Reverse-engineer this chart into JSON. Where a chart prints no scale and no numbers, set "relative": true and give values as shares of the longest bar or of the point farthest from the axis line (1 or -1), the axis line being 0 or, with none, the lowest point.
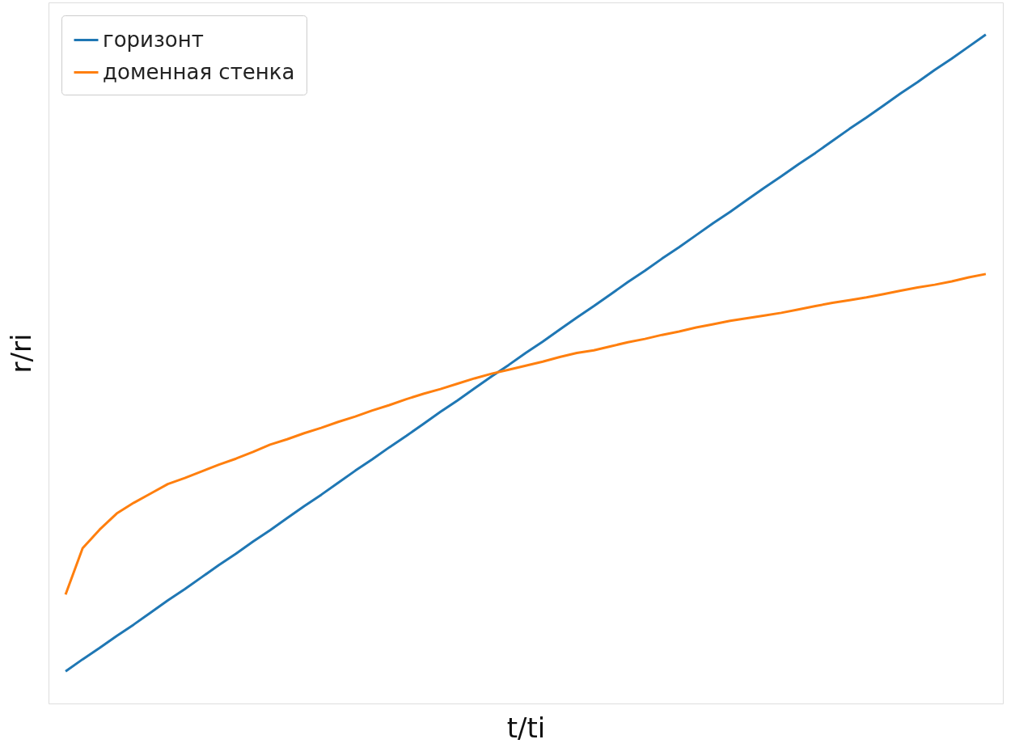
{
  "chart_data": {
    "type": "line",
    "xlabel": "t/ti",
    "ylabel": "r/ri",
    "relative": true,
    "grid": false,
    "legend": "top left",
    "marker": "none",
    "line_style": "solid",
    "categories": [
      null,
      null,
      null,
      null,
      null,
      null,
      null,
      null,
      null,
      null,
      null,
      null,
      null,
      null,
      null,
      null,
      null,
      null,
      null,
      null,
      null,
      null,
      null,
      null,
      null,
      null,
      null,
      null,
      null,
      null,
      null,
      null,
      null,
      null,
      null,
      null,
      null,
      null,
      null,
      null,
      null,
      null,
      null,
      null,
      null,
      null,
      null,
      null,
      null,
      null,
      null,
      null,
      null,
      null,
      null
    ],
    "series": [
      {
        "name": "горизонт",
        "color": "#1f77b4",
        "values": [
          0.048,
          0.066,
          0.083,
          0.101,
          0.118,
          0.136,
          0.154,
          0.171,
          0.189,
          0.207,
          0.224,
          0.242,
          0.259,
          0.277,
          0.295,
          0.312,
          0.33,
          0.348,
          0.365,
          0.383,
          0.4,
          0.418,
          0.436,
          0.453,
          0.471,
          0.489,
          0.506,
          0.524,
          0.541,
          0.559,
          0.577,
          0.594,
          0.612,
          0.63,
          0.647,
          0.665,
          0.682,
          0.7,
          0.718,
          0.735,
          0.753,
          0.771,
          0.788,
          0.806,
          0.823,
          0.841,
          0.859,
          0.876,
          0.894,
          0.912,
          0.929,
          0.947,
          0.964,
          0.982,
          1.0
        ]
      },
      {
        "name": "доменная стенка",
        "color": "#ff7f0e",
        "values": [
          0.163,
          0.232,
          0.26,
          0.284,
          0.3,
          0.314,
          0.328,
          0.337,
          0.347,
          0.357,
          0.366,
          0.376,
          0.387,
          0.395,
          0.404,
          0.412,
          0.421,
          0.429,
          0.438,
          0.446,
          0.455,
          0.463,
          0.47,
          0.478,
          0.486,
          0.493,
          0.499,
          0.505,
          0.511,
          0.518,
          0.524,
          0.528,
          0.534,
          0.54,
          0.545,
          0.551,
          0.556,
          0.562,
          0.567,
          0.572,
          0.576,
          0.58,
          0.584,
          0.589,
          0.594,
          0.599,
          0.603,
          0.607,
          0.612,
          0.617,
          0.622,
          0.626,
          0.631,
          0.637,
          0.642
        ]
      }
    ]
  }
}
